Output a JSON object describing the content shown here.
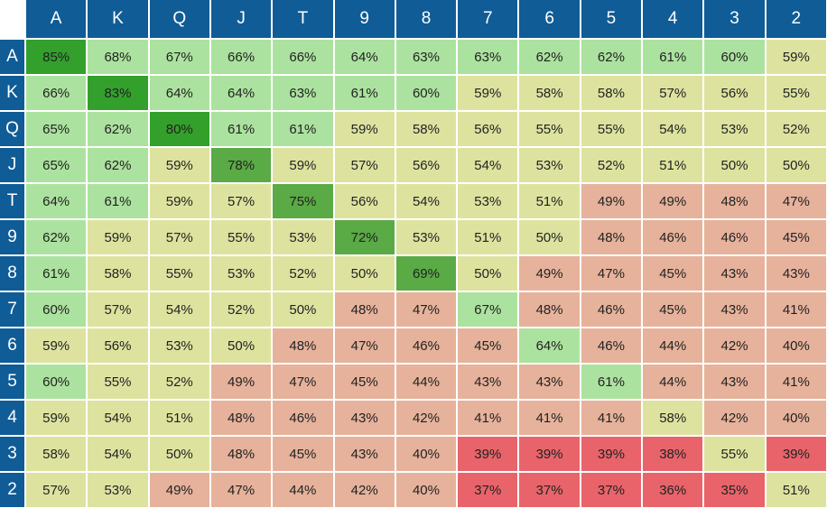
{
  "chart_data": {
    "type": "heatmap",
    "ranks": [
      "A",
      "K",
      "Q",
      "J",
      "T",
      "9",
      "8",
      "7",
      "6",
      "5",
      "4",
      "3",
      "2"
    ],
    "values": [
      [
        85,
        68,
        67,
        66,
        66,
        64,
        63,
        63,
        62,
        62,
        61,
        60,
        59
      ],
      [
        66,
        83,
        64,
        64,
        63,
        61,
        60,
        59,
        58,
        58,
        57,
        56,
        55
      ],
      [
        65,
        62,
        80,
        61,
        61,
        59,
        58,
        56,
        55,
        55,
        54,
        53,
        52
      ],
      [
        65,
        62,
        59,
        78,
        59,
        57,
        56,
        54,
        53,
        52,
        51,
        50,
        50
      ],
      [
        64,
        61,
        59,
        57,
        75,
        56,
        54,
        53,
        51,
        49,
        49,
        48,
        47
      ],
      [
        62,
        59,
        57,
        55,
        53,
        72,
        53,
        51,
        50,
        48,
        46,
        46,
        45
      ],
      [
        61,
        58,
        55,
        53,
        52,
        50,
        69,
        50,
        49,
        47,
        45,
        43,
        43
      ],
      [
        60,
        57,
        54,
        52,
        50,
        48,
        47,
        67,
        48,
        46,
        45,
        43,
        41
      ],
      [
        59,
        56,
        53,
        50,
        48,
        47,
        46,
        45,
        64,
        46,
        44,
        42,
        40
      ],
      [
        60,
        55,
        52,
        49,
        47,
        45,
        44,
        43,
        43,
        61,
        44,
        43,
        41
      ],
      [
        59,
        54,
        51,
        48,
        46,
        43,
        42,
        41,
        41,
        41,
        58,
        42,
        40
      ],
      [
        58,
        54,
        50,
        48,
        45,
        43,
        40,
        39,
        39,
        39,
        38,
        55,
        39
      ],
      [
        57,
        53,
        49,
        47,
        44,
        42,
        40,
        37,
        37,
        37,
        36,
        35,
        51
      ]
    ],
    "value_suffix": "%",
    "colors": {
      "header": "#0f5c97",
      "diag_strong": "#33a02c",
      "diag_mid": "#5aaa45",
      "high": "#ace29f",
      "mid": "#dde39f",
      "low": "#e6b29b",
      "lowest": "#e8646a"
    }
  }
}
